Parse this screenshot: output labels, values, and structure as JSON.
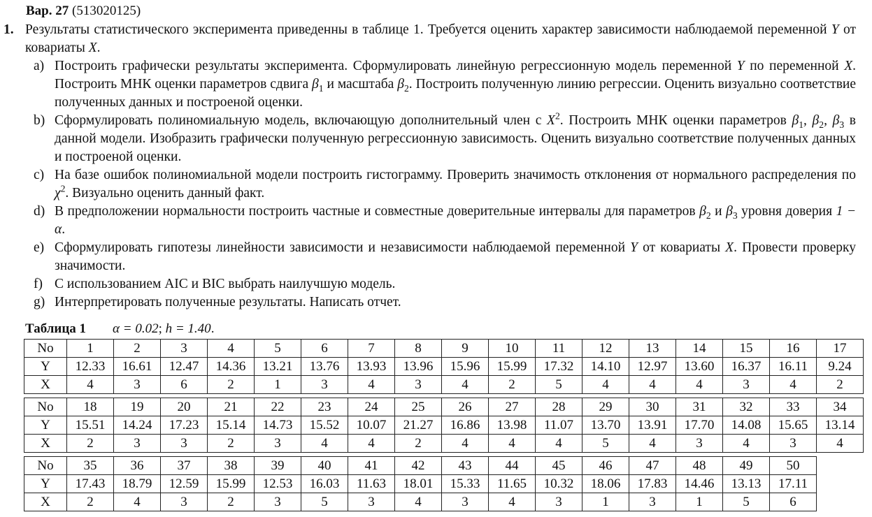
{
  "header": {
    "var_label": "Вар. 27",
    "var_code": "(513020125)"
  },
  "task": {
    "number": "1.",
    "intro": "Результаты статистического эксперимента приведенны в таблице 1. Требуется оценить характер зависимости наблюдаемой переменной $Y$ от ковариаты $X$.",
    "items": [
      {
        "label": "a)",
        "text": "Построить графически результаты эксперимента. Сформулировать линейную регрессионную модель переменной $Y$ по переменной $X$. Построить МНК оценки параметров сдвига $β_1$ и масштаба $β_2$. Построить полученную линию регрессии. Оценить визуально соответствие полученных данных и построеной оценки."
      },
      {
        "label": "b)",
        "text": "Сформулировать полиномиальную модель, включающую дополнительный член с $X^2$. Построить МНК оценки параметров $β_1, β_2, β_3$ в данной модели. Изобразить графически полученную регрессионную зависимость. Оценить визуально соответствие полученных данных и построеной оценки."
      },
      {
        "label": "c)",
        "text": "На базе ошибок полиномиальной модели построить гистограмму. Проверить значимость отклонения от нормального распределения по $χ^2$. Визуально оценить данный факт."
      },
      {
        "label": "d)",
        "text": "В предположении нормальности построить частные и совместные доверительные интервалы для параметров $β_2$ и $β_3$ уровня доверия $1 − α$."
      },
      {
        "label": "e)",
        "text": "Сформулировать гипотезы линейности зависимости и независимости наблюдаемой переменной $Y$ от ковариаты $X$. Провести проверку значимости."
      },
      {
        "label": "f)",
        "text": "С использованием AIC и BIC выбрать наилучшую модель."
      },
      {
        "label": "g)",
        "text": "Интерпретировать полученные результаты. Написать отчет."
      }
    ]
  },
  "table": {
    "caption": "Таблица 1",
    "params": "$α = 0.02$; $h = 1.40$.",
    "row_headers": [
      "No",
      "Y",
      "X"
    ],
    "blocks": [
      {
        "no": [
          "1",
          "2",
          "3",
          "4",
          "5",
          "6",
          "7",
          "8",
          "9",
          "10",
          "11",
          "12",
          "13",
          "14",
          "15",
          "16",
          "17"
        ],
        "y": [
          "12.33",
          "16.61",
          "12.47",
          "14.36",
          "13.21",
          "13.76",
          "13.93",
          "13.96",
          "15.96",
          "15.99",
          "17.32",
          "14.10",
          "12.97",
          "13.60",
          "16.37",
          "16.11",
          "9.24"
        ],
        "x": [
          "4",
          "3",
          "6",
          "2",
          "1",
          "3",
          "4",
          "3",
          "4",
          "2",
          "5",
          "4",
          "4",
          "4",
          "3",
          "4",
          "2"
        ]
      },
      {
        "no": [
          "18",
          "19",
          "20",
          "21",
          "22",
          "23",
          "24",
          "25",
          "26",
          "27",
          "28",
          "29",
          "30",
          "31",
          "32",
          "33",
          "34"
        ],
        "y": [
          "15.51",
          "14.24",
          "17.23",
          "15.14",
          "14.73",
          "15.52",
          "10.07",
          "21.27",
          "16.86",
          "13.98",
          "11.07",
          "13.70",
          "13.91",
          "17.70",
          "14.08",
          "15.65",
          "13.14"
        ],
        "x": [
          "2",
          "3",
          "3",
          "2",
          "3",
          "4",
          "4",
          "2",
          "4",
          "4",
          "4",
          "5",
          "4",
          "3",
          "4",
          "3",
          "4"
        ]
      },
      {
        "no": [
          "35",
          "36",
          "37",
          "38",
          "39",
          "40",
          "41",
          "42",
          "43",
          "44",
          "45",
          "46",
          "47",
          "48",
          "49",
          "50"
        ],
        "y": [
          "17.43",
          "18.79",
          "12.59",
          "15.99",
          "12.53",
          "16.03",
          "11.63",
          "18.01",
          "15.33",
          "11.65",
          "10.32",
          "18.06",
          "17.83",
          "14.46",
          "13.13",
          "17.11"
        ],
        "x": [
          "2",
          "4",
          "3",
          "2",
          "3",
          "5",
          "3",
          "4",
          "3",
          "4",
          "3",
          "1",
          "3",
          "1",
          "5",
          "6"
        ]
      }
    ]
  }
}
